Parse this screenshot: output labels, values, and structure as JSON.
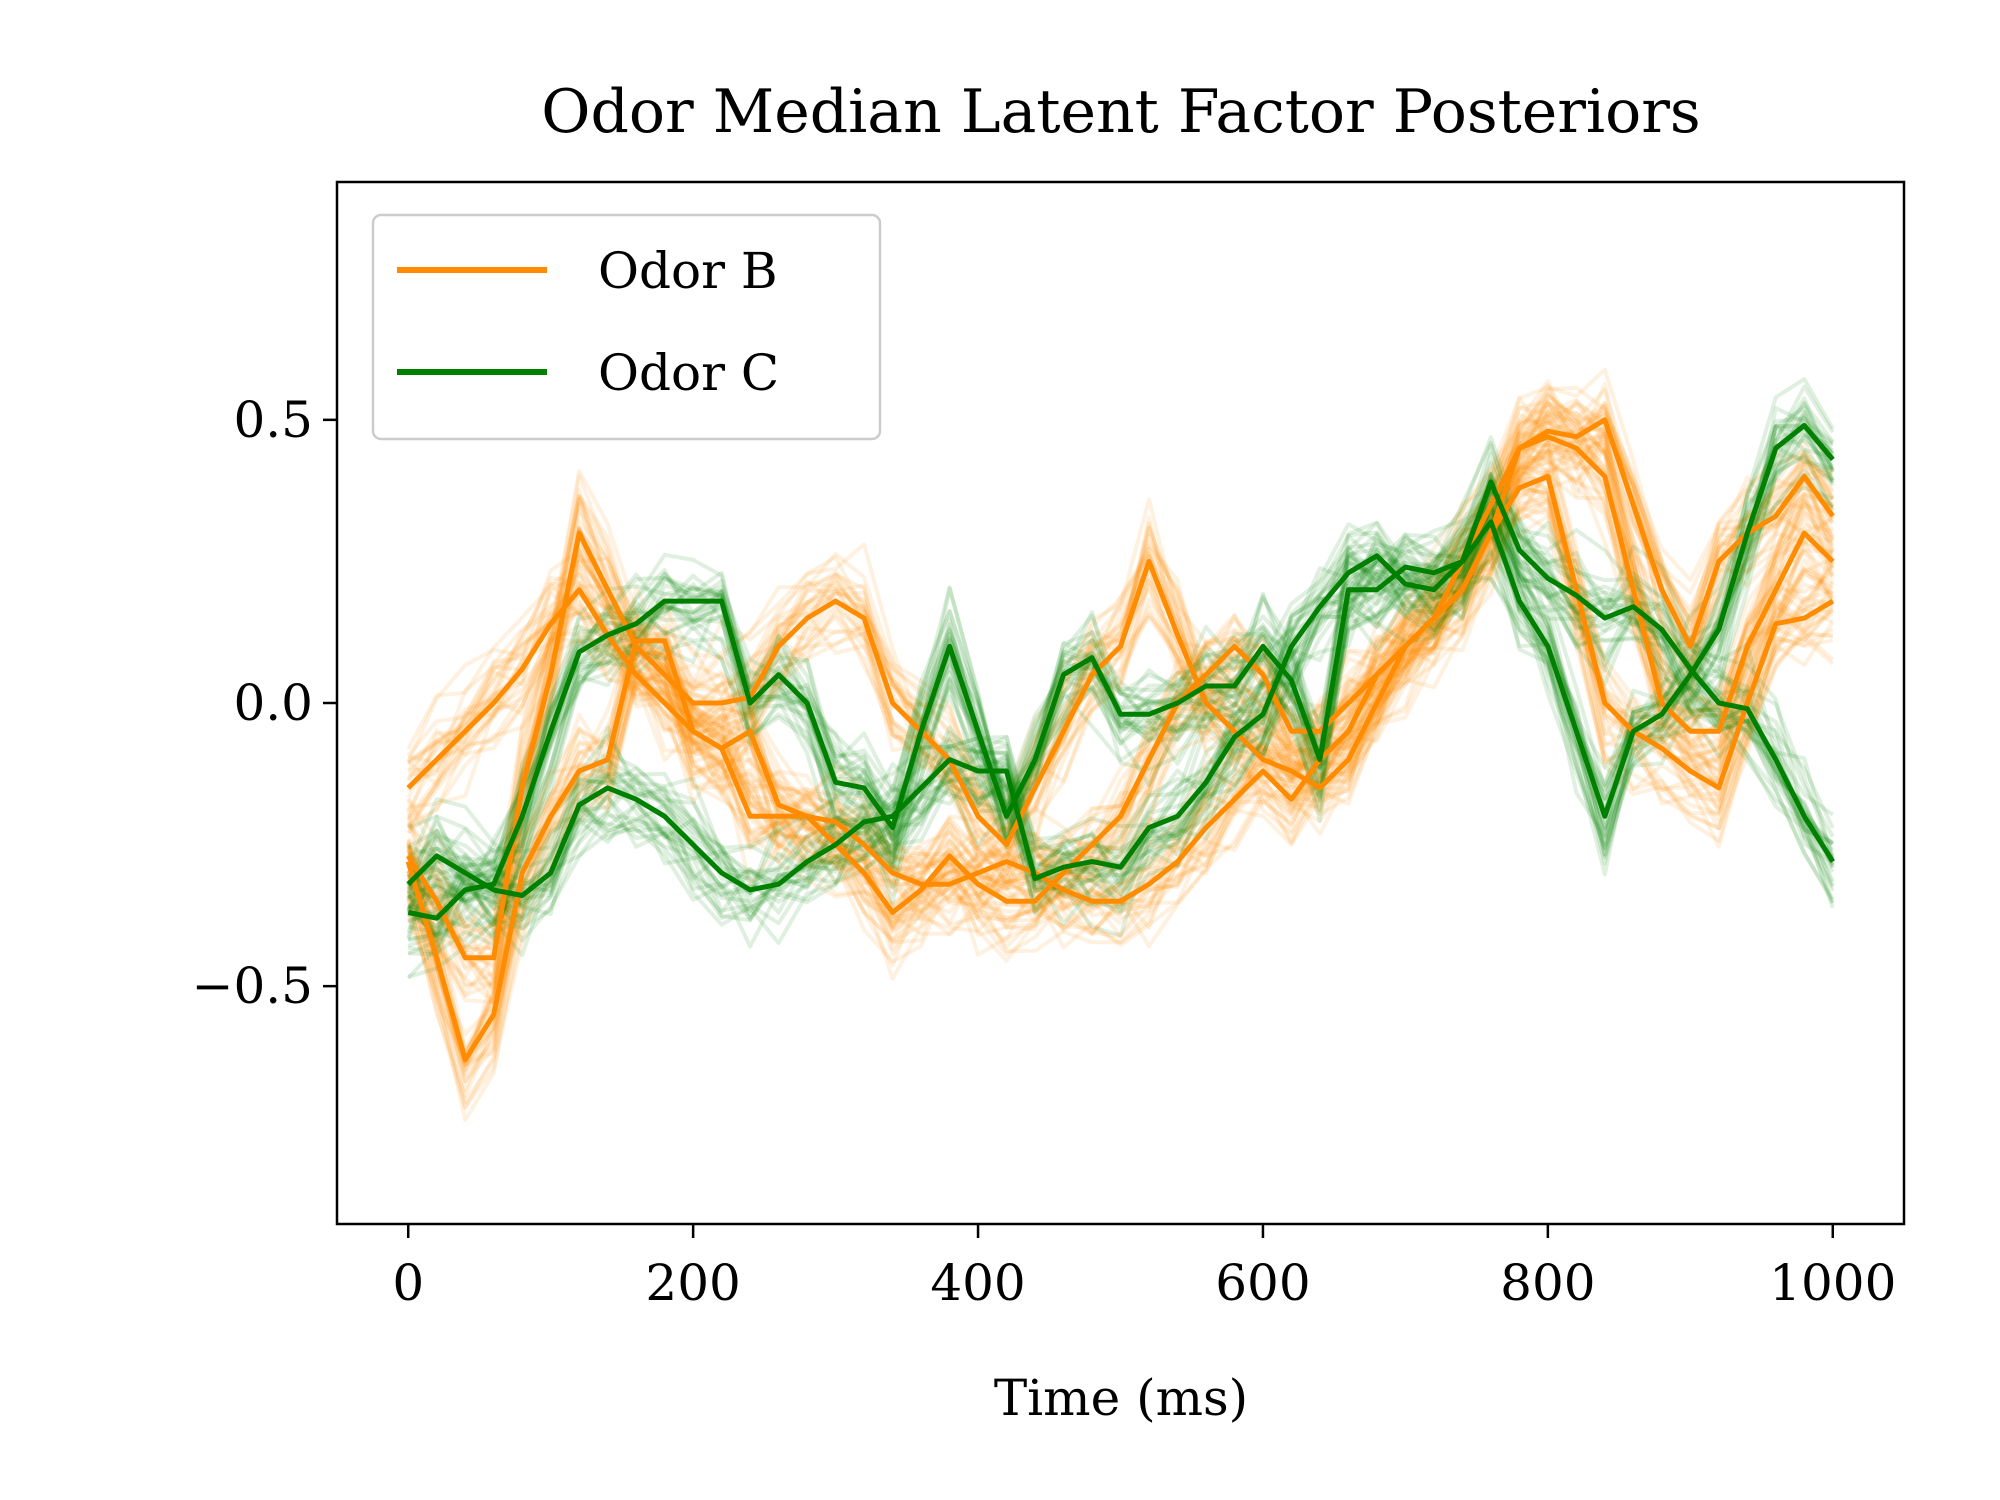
{
  "chart_data": {
    "type": "line",
    "title": "Odor Median Latent Factor Posteriors",
    "xlabel": "Time (ms)",
    "ylabel": "",
    "xlim": [
      -50,
      1050
    ],
    "ylim": [
      -0.92,
      0.92
    ],
    "x_ticks": [
      0,
      200,
      400,
      600,
      800,
      1000
    ],
    "x_tick_labels": [
      "0",
      "200",
      "400",
      "600",
      "800",
      "1000"
    ],
    "y_ticks": [
      0.5,
      0.0,
      -0.5
    ],
    "y_tick_labels": [
      "0.5",
      "0.0",
      "−0.5"
    ],
    "grid": false,
    "legend_position": "top-left",
    "x": [
      0,
      20,
      40,
      60,
      80,
      100,
      120,
      140,
      160,
      180,
      200,
      220,
      240,
      260,
      280,
      300,
      320,
      340,
      360,
      380,
      400,
      420,
      440,
      460,
      480,
      500,
      520,
      540,
      560,
      580,
      600,
      620,
      640,
      660,
      680,
      700,
      720,
      740,
      760,
      780,
      800,
      820,
      840,
      860,
      880,
      900,
      920,
      940,
      960,
      980,
      1000
    ],
    "series": [
      {
        "name": "Odor B",
        "color": "#ff8c00",
        "lines": [
          [
            -0.15,
            -0.1,
            -0.05,
            0.0,
            0.06,
            0.14,
            0.2,
            0.12,
            0.05,
            0.0,
            -0.05,
            -0.08,
            -0.2,
            -0.2,
            -0.2,
            -0.21,
            -0.25,
            -0.3,
            -0.32,
            -0.32,
            -0.3,
            -0.28,
            -0.3,
            -0.33,
            -0.35,
            -0.35,
            -0.32,
            -0.28,
            -0.22,
            -0.17,
            -0.12,
            -0.17,
            -0.1,
            -0.05,
            0.05,
            0.1,
            0.15,
            0.2,
            0.3,
            0.45,
            0.48,
            0.47,
            0.5,
            0.35,
            0.2,
            0.1,
            0.25,
            0.3,
            0.33,
            0.4,
            0.33
          ],
          [
            -0.28,
            -0.45,
            -0.63,
            -0.55,
            -0.3,
            -0.2,
            -0.12,
            -0.1,
            0.11,
            0.11,
            -0.05,
            -0.08,
            -0.05,
            -0.18,
            -0.2,
            -0.25,
            -0.3,
            -0.37,
            -0.33,
            -0.27,
            -0.32,
            -0.35,
            -0.35,
            -0.3,
            -0.25,
            -0.2,
            -0.1,
            0.0,
            0.05,
            0.1,
            0.05,
            -0.05,
            -0.05,
            0.0,
            0.05,
            0.1,
            0.15,
            0.2,
            0.3,
            0.38,
            0.4,
            0.2,
            0.0,
            -0.05,
            -0.08,
            -0.12,
            -0.15,
            0.0,
            0.14,
            0.15,
            0.18
          ],
          [
            -0.27,
            -0.35,
            -0.45,
            -0.45,
            -0.15,
            0.05,
            0.3,
            0.2,
            0.1,
            0.05,
            0.0,
            0.0,
            0.01,
            0.1,
            0.15,
            0.18,
            0.15,
            0.0,
            -0.05,
            -0.1,
            -0.2,
            -0.25,
            -0.15,
            -0.05,
            0.05,
            0.1,
            0.25,
            0.12,
            0.0,
            -0.05,
            -0.1,
            -0.12,
            -0.15,
            -0.1,
            0.0,
            0.1,
            0.15,
            0.25,
            0.35,
            0.45,
            0.47,
            0.45,
            0.4,
            0.2,
            0.0,
            -0.05,
            -0.05,
            0.1,
            0.2,
            0.3,
            0.25
          ]
        ]
      },
      {
        "name": "Odor C",
        "color": "#008000",
        "lines": [
          [
            -0.32,
            -0.27,
            -0.3,
            -0.33,
            -0.34,
            -0.3,
            -0.18,
            -0.15,
            -0.17,
            -0.2,
            -0.25,
            -0.3,
            -0.33,
            -0.32,
            -0.28,
            -0.25,
            -0.21,
            -0.2,
            -0.15,
            -0.1,
            -0.12,
            -0.12,
            -0.31,
            -0.29,
            -0.28,
            -0.29,
            -0.22,
            -0.2,
            -0.14,
            -0.06,
            -0.02,
            0.1,
            0.17,
            0.23,
            0.26,
            0.21,
            0.2,
            0.25,
            0.39,
            0.27,
            0.22,
            0.19,
            0.15,
            0.17,
            0.13,
            0.06,
            0.0,
            -0.01,
            -0.1,
            -0.2,
            -0.28
          ],
          [
            -0.37,
            -0.38,
            -0.33,
            -0.32,
            -0.2,
            -0.05,
            0.09,
            0.12,
            0.14,
            0.18,
            0.18,
            0.18,
            0.0,
            0.05,
            0.0,
            -0.14,
            -0.15,
            -0.22,
            -0.05,
            0.1,
            -0.05,
            -0.2,
            -0.1,
            0.05,
            0.08,
            -0.02,
            -0.02,
            0.0,
            0.03,
            0.03,
            0.1,
            0.04,
            -0.1,
            0.2,
            0.2,
            0.24,
            0.23,
            0.25,
            0.32,
            0.18,
            0.1,
            -0.05,
            -0.2,
            -0.05,
            -0.02,
            0.05,
            0.13,
            0.3,
            0.45,
            0.49,
            0.43
          ]
        ]
      }
    ]
  }
}
